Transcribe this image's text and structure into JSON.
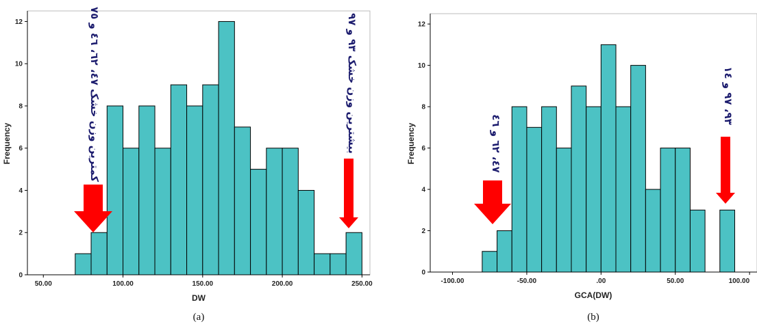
{
  "chart_data": [
    {
      "type": "bar",
      "xlabel": "DW",
      "ylabel": "Frequency",
      "caption": "(a)",
      "xlim": [
        40,
        255
      ],
      "ylim": [
        0,
        12.5
      ],
      "xticks": [
        "50.00",
        "100.00",
        "150.00",
        "200.00",
        "250.00"
      ],
      "yticks": [
        "0",
        "2",
        "4",
        "6",
        "8",
        "10",
        "12"
      ],
      "bin_width": 10,
      "bins": [
        {
          "start": 70,
          "value": 1
        },
        {
          "start": 80,
          "value": 2
        },
        {
          "start": 90,
          "value": 8
        },
        {
          "start": 100,
          "value": 6
        },
        {
          "start": 110,
          "value": 8
        },
        {
          "start": 120,
          "value": 6
        },
        {
          "start": 130,
          "value": 9
        },
        {
          "start": 140,
          "value": 8
        },
        {
          "start": 150,
          "value": 9
        },
        {
          "start": 160,
          "value": 12
        },
        {
          "start": 170,
          "value": 7
        },
        {
          "start": 180,
          "value": 5
        },
        {
          "start": 190,
          "value": 6
        },
        {
          "start": 200,
          "value": 6
        },
        {
          "start": 210,
          "value": 4
        },
        {
          "start": 220,
          "value": 1
        },
        {
          "start": 230,
          "value": 1
        },
        {
          "start": 240,
          "value": 2
        }
      ],
      "annotations": {
        "left": "کمترین وزن خشک ٤٧، ٦٢، ٤٦ و ٧٥",
        "right": "بیشترین وزن خشک ٩٣ و ٩٧"
      },
      "colors": {
        "bar": "#4cc2c4",
        "arrow": "#ff0000"
      }
    },
    {
      "type": "bar",
      "xlabel": "GCA(DW)",
      "ylabel": "Frequency",
      "caption": "(b)",
      "xlim": [
        -115,
        105
      ],
      "ylim": [
        0,
        12.5
      ],
      "xticks": [
        "-100.00",
        "-50.00",
        ".00",
        "50.00",
        "100.00"
      ],
      "yticks": [
        "0",
        "2",
        "4",
        "6",
        "8",
        "10",
        "12"
      ],
      "bin_width": 10,
      "bins": [
        {
          "start": -80,
          "value": 1
        },
        {
          "start": -70,
          "value": 2
        },
        {
          "start": -60,
          "value": 8
        },
        {
          "start": -50,
          "value": 7
        },
        {
          "start": -40,
          "value": 8
        },
        {
          "start": -30,
          "value": 6
        },
        {
          "start": -20,
          "value": 9
        },
        {
          "start": -10,
          "value": 8
        },
        {
          "start": 0,
          "value": 11
        },
        {
          "start": 10,
          "value": 8
        },
        {
          "start": 20,
          "value": 10
        },
        {
          "start": 30,
          "value": 4
        },
        {
          "start": 40,
          "value": 6
        },
        {
          "start": 50,
          "value": 6
        },
        {
          "start": 60,
          "value": 3
        },
        {
          "start": 80,
          "value": 3
        }
      ],
      "annotations": {
        "left": "٤٧، ٦٢ و ٤٦",
        "right": "٩٣، ٩٧ و ١٤"
      },
      "colors": {
        "bar": "#4cc2c4",
        "arrow": "#ff0000"
      }
    }
  ]
}
